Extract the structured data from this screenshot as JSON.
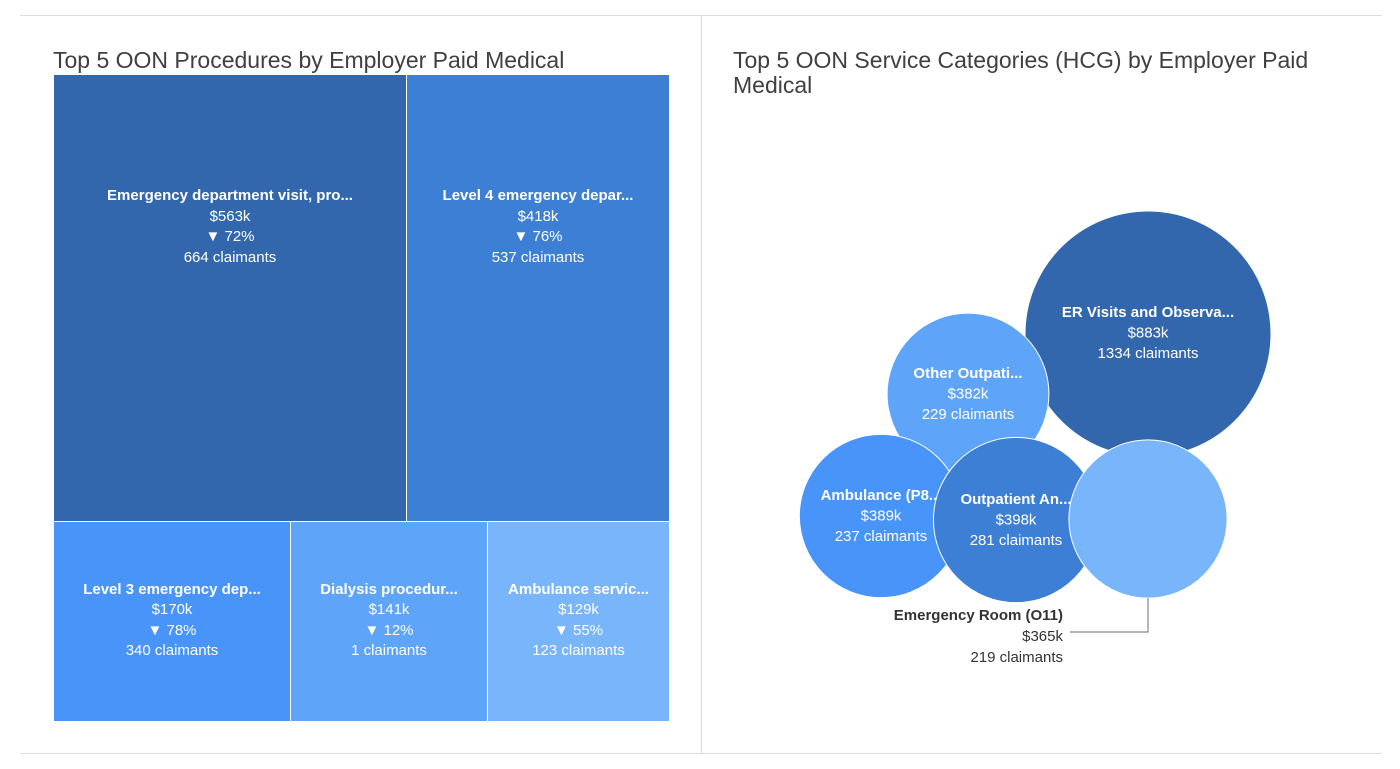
{
  "chart_data": [
    {
      "type": "treemap",
      "title": "Top 5 OON Procedures by Employer Paid Medical",
      "items": [
        {
          "name": "Emergency department visit, pro...",
          "value_k": 563,
          "value_label": "$563k",
          "change_label": "▼ 72%",
          "claimants_label": "664 claimants",
          "color": "#3267ad"
        },
        {
          "name": "Level 4 emergency depar...",
          "value_k": 418,
          "value_label": "$418k",
          "change_label": "▼ 76%",
          "claimants_label": "537 claimants",
          "color": "#3d7fd4"
        },
        {
          "name": "Level 3 emergency dep...",
          "value_k": 170,
          "value_label": "$170k",
          "change_label": "▼ 78%",
          "claimants_label": "340 claimants",
          "color": "#4894f8"
        },
        {
          "name": "Dialysis procedur...",
          "value_k": 141,
          "value_label": "$141k",
          "change_label": "▼ 12%",
          "claimants_label": "1 claimants",
          "color": "#5ea4f8"
        },
        {
          "name": "Ambulance servic...",
          "value_k": 129,
          "value_label": "$129k",
          "change_label": "▼ 55%",
          "claimants_label": "123 claimants",
          "color": "#79b5fa"
        }
      ]
    },
    {
      "type": "bubble",
      "title": "Top 5 OON Service Categories (HCG) by Employer Paid Medical",
      "items": [
        {
          "name": "ER Visits and Observa...",
          "value_k": 883,
          "value_label": "$883k",
          "claimants_label": "1334 claimants",
          "color": "#3267ad",
          "label_inside": true
        },
        {
          "name": "Other Outpati...",
          "value_k": 382,
          "value_label": "$382k",
          "claimants_label": "229 claimants",
          "color": "#5ea4f8",
          "label_inside": true
        },
        {
          "name": "Ambulance (P8...",
          "value_k": 389,
          "value_label": "$389k",
          "claimants_label": "237 claimants",
          "color": "#4894f8",
          "label_inside": true
        },
        {
          "name": "Outpatient An...",
          "value_k": 398,
          "value_label": "$398k",
          "claimants_label": "281 claimants",
          "color": "#3d7fd4",
          "label_inside": true
        },
        {
          "name": "Emergency Room (O11)",
          "value_k": 365,
          "value_label": "$365k",
          "claimants_label": "219 claimants",
          "color": "#79b5fa",
          "label_inside": false
        }
      ]
    }
  ]
}
